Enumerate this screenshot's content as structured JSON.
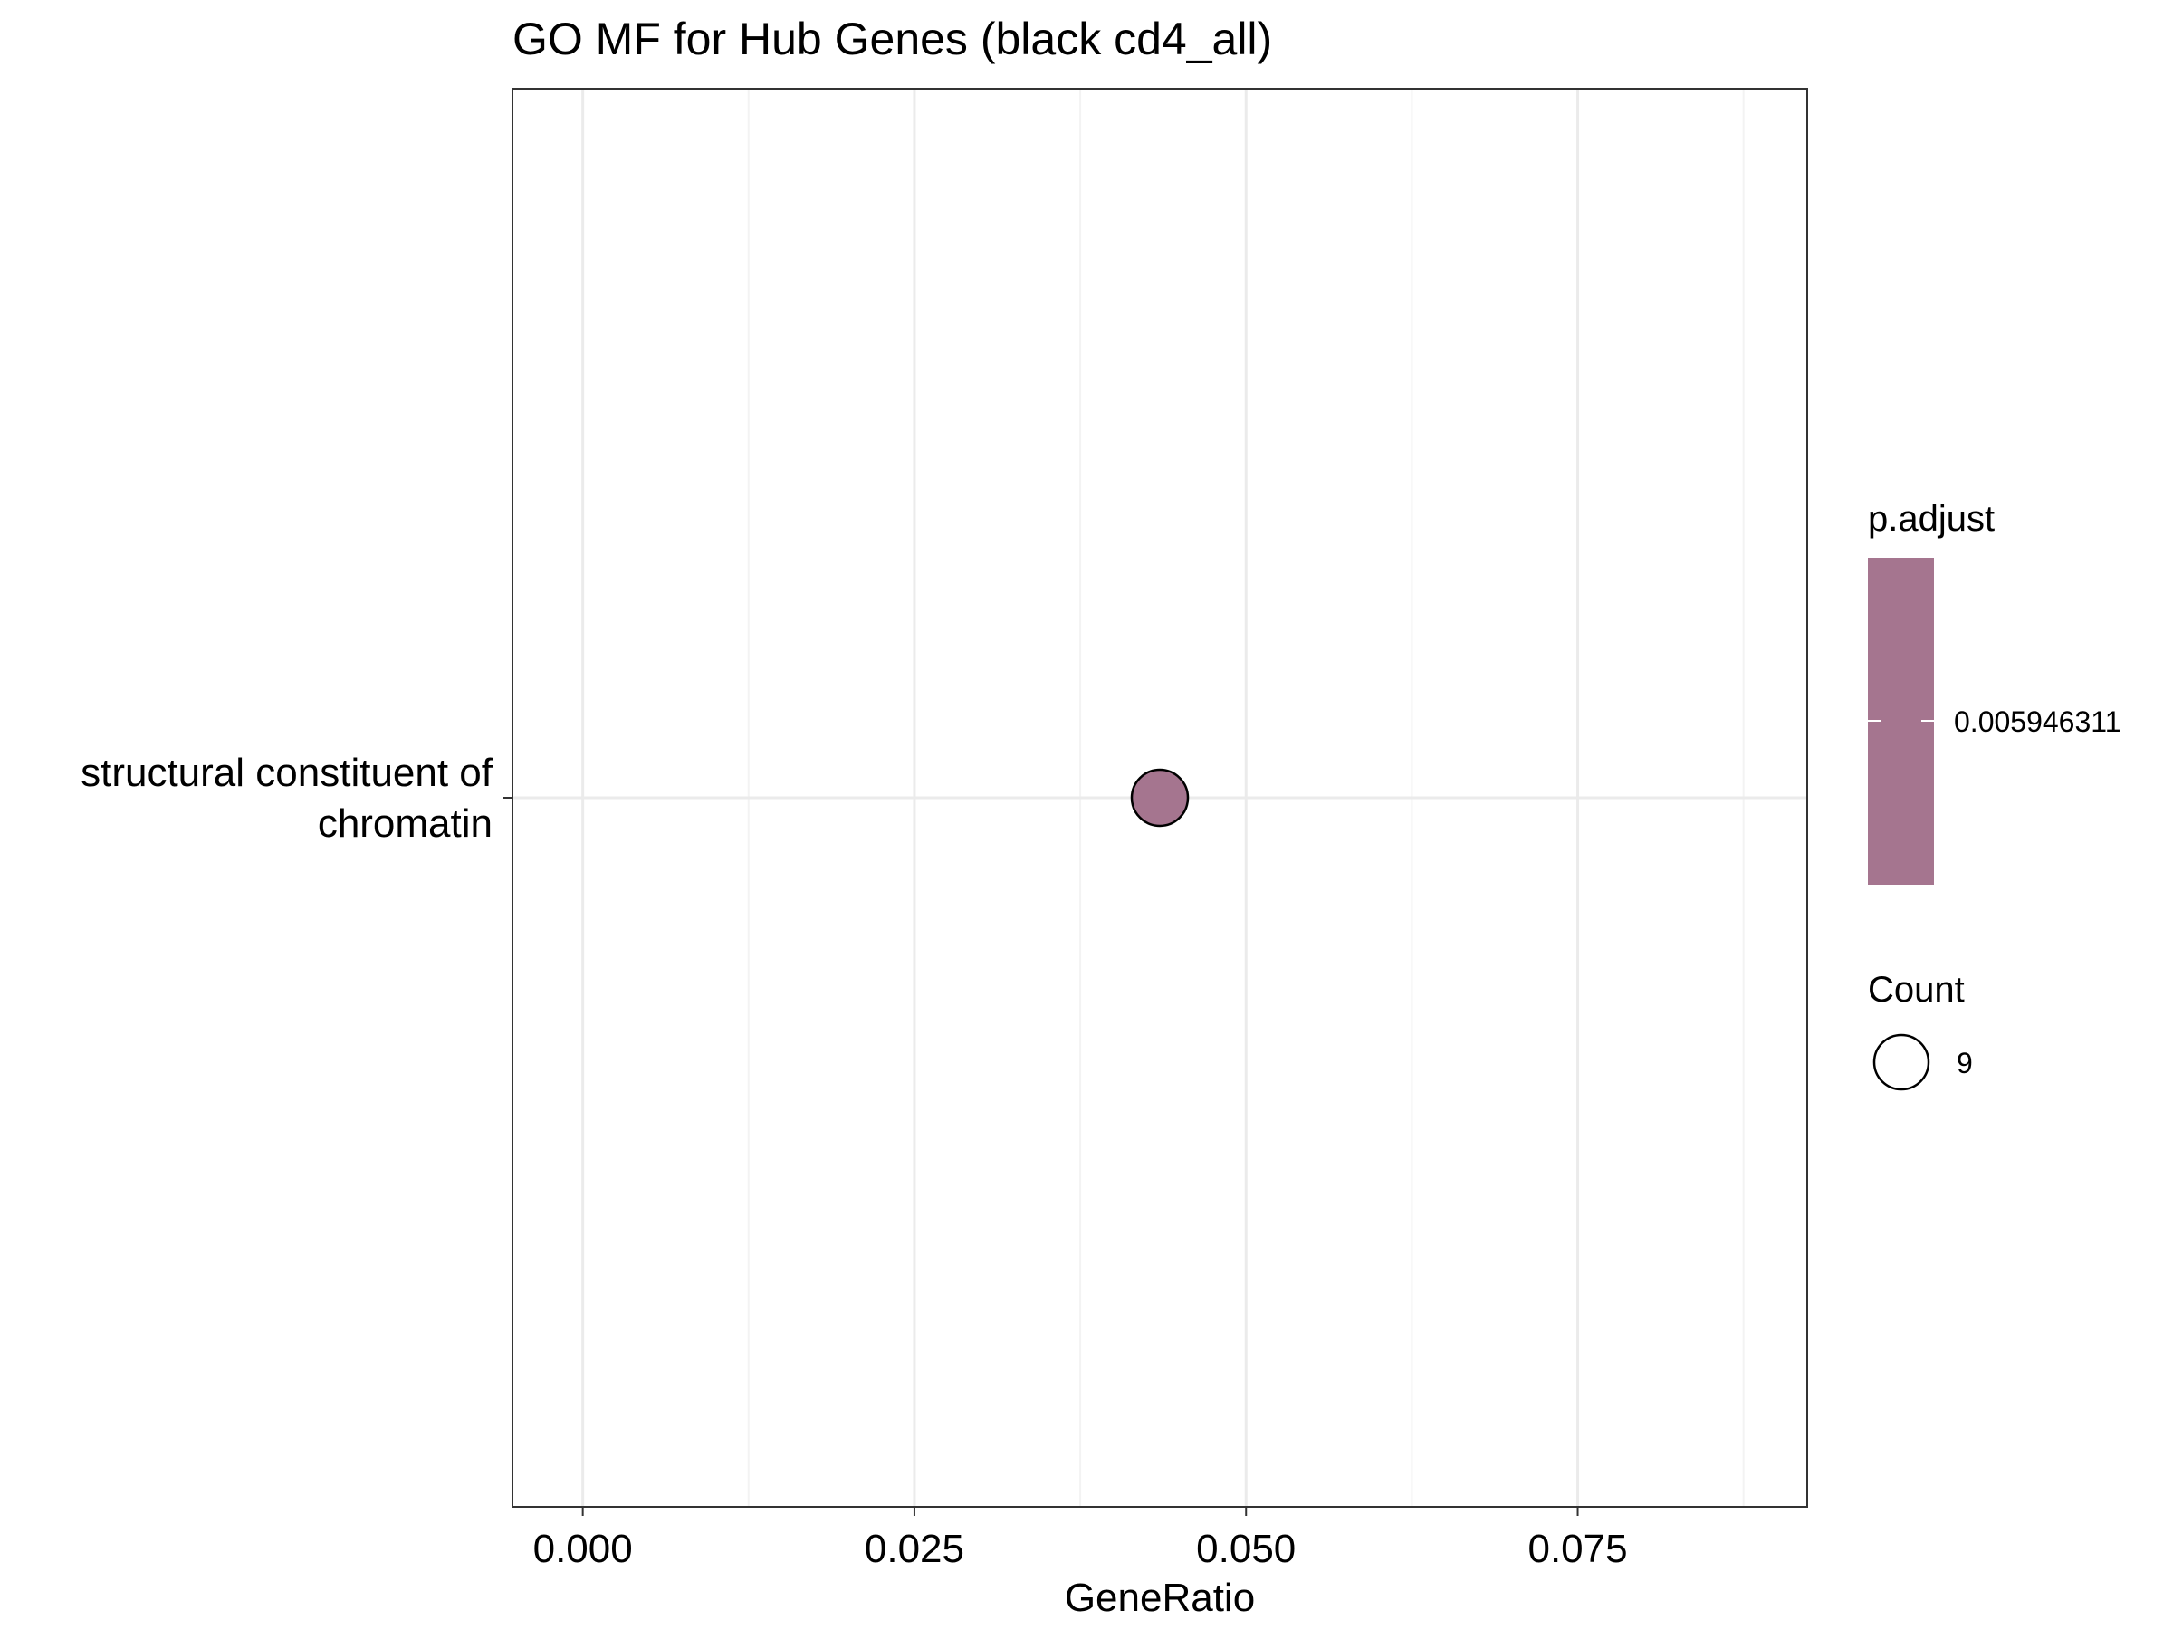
{
  "chart_data": {
    "type": "scatter",
    "title": "GO MF for Hub Genes (black cd4_all)",
    "xlabel": "GeneRatio",
    "ylabel": "",
    "xlim": [
      -0.0053,
      0.0923
    ],
    "x_ticks": [
      {
        "value": 0.0,
        "label": "0.000"
      },
      {
        "value": 0.025,
        "label": "0.025"
      },
      {
        "value": 0.05,
        "label": "0.050"
      },
      {
        "value": 0.075,
        "label": "0.075"
      }
    ],
    "x_minor_gridlines": [
      0.0125,
      0.0375,
      0.0625,
      0.0875
    ],
    "categories": [
      "structural constituent of chromatin"
    ],
    "category_label_lines": [
      [
        "structural constituent of",
        "chromatin"
      ]
    ],
    "grid": true,
    "points": [
      {
        "category": "structural constituent of chromatin",
        "x": 0.0435,
        "count": 9,
        "p_adjust": 0.005946311
      }
    ],
    "legend": {
      "placement": "right",
      "color": {
        "title": "p.adjust",
        "label": "0.005946311",
        "fill": "#a5758f"
      },
      "size": {
        "title": "Count",
        "label": "9"
      }
    },
    "colors": {
      "point_fill": "#a5758f",
      "point_stroke": "#000000",
      "grid_major": "#ebebeb",
      "grid_minor": "#f3f3f3",
      "panel_border": "#333333"
    }
  }
}
